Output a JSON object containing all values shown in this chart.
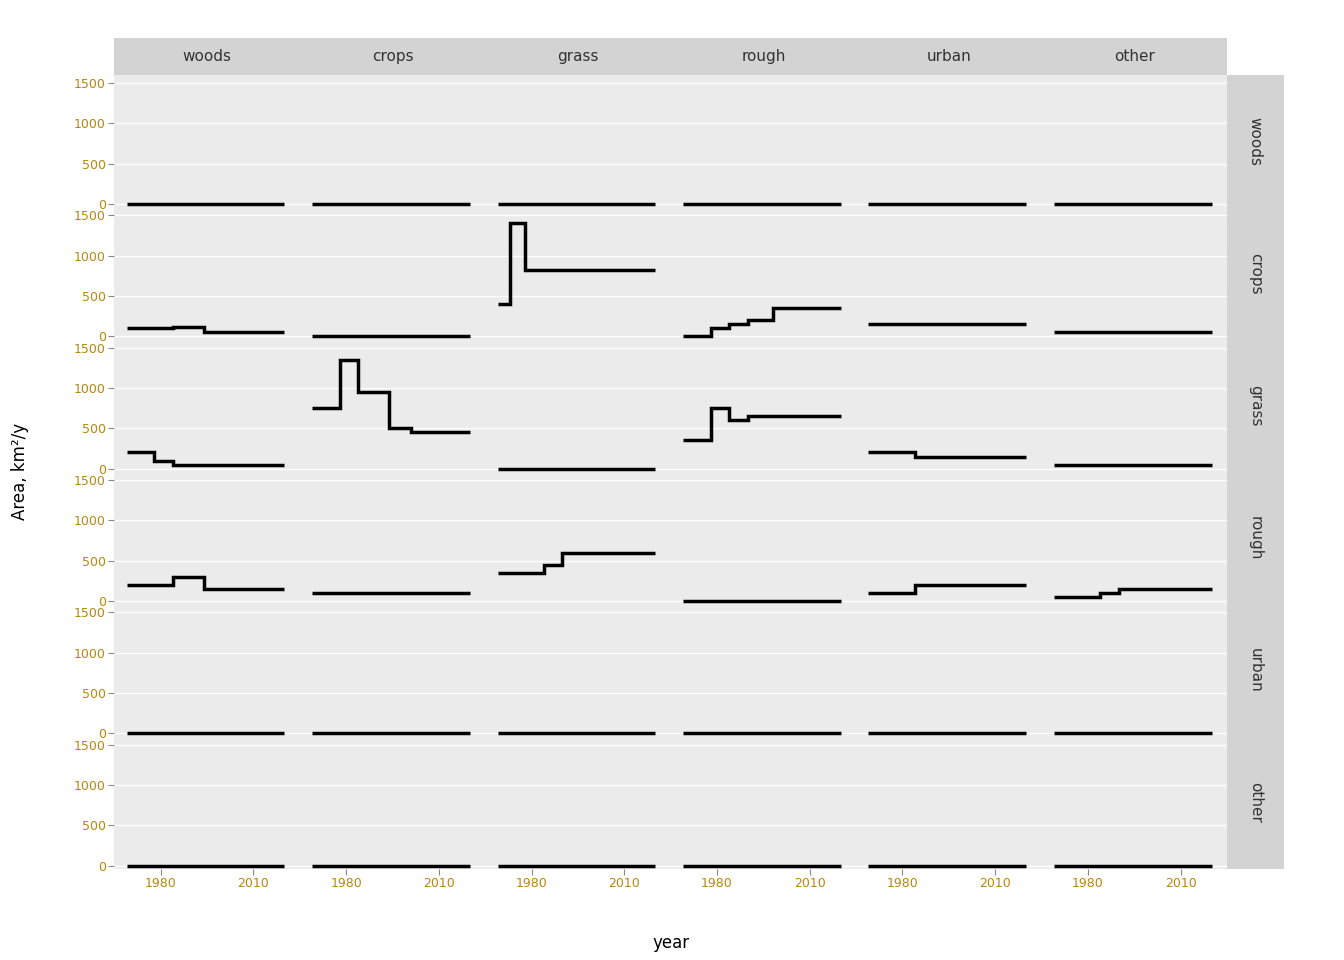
{
  "categories": [
    "woods",
    "crops",
    "grass",
    "rough",
    "urban",
    "other"
  ],
  "panel_bg": "#EBEBEB",
  "line_color": "black",
  "line_width": 2.5,
  "ylabel": "Area, km²/y",
  "xlabel": "year",
  "ylim": [
    -40,
    1600
  ],
  "yticks": [
    0,
    500,
    1000,
    1500
  ],
  "xlim": [
    1965,
    2025
  ],
  "xticks": [
    1980,
    2010
  ],
  "strip_bg": "#D3D3D3",
  "strip_text_color": "#333333",
  "tick_color": "#B8860B",
  "tick_fontsize": 9,
  "axis_label_fontsize": 12,
  "strip_fontsize": 11,
  "grid_color": "white",
  "grid_lw": 1.0,
  "series": {
    "woods_woods": {
      "years": [
        1969,
        2020
      ],
      "values": [
        0,
        0
      ]
    },
    "woods_crops": {
      "years": [
        1969,
        2020
      ],
      "values": [
        0,
        0
      ]
    },
    "woods_grass": {
      "years": [
        1969,
        2020
      ],
      "values": [
        0,
        0
      ]
    },
    "woods_rough": {
      "years": [
        1969,
        2020
      ],
      "values": [
        0,
        0
      ]
    },
    "woods_urban": {
      "years": [
        1969,
        2020
      ],
      "values": [
        0,
        0
      ]
    },
    "woods_other": {
      "years": [
        1969,
        2020
      ],
      "values": [
        0,
        0
      ]
    },
    "crops_woods": {
      "years": [
        1969,
        1984,
        1984,
        1994,
        1994,
        2020
      ],
      "values": [
        100,
        100,
        120,
        120,
        50,
        50
      ]
    },
    "crops_crops": {
      "years": [
        1969,
        2020
      ],
      "values": [
        0,
        0
      ]
    },
    "crops_grass": {
      "years": [
        1969,
        1973,
        1973,
        1978,
        1978,
        1993,
        1993,
        2020
      ],
      "values": [
        400,
        400,
        1400,
        1400,
        820,
        820,
        820,
        820
      ]
    },
    "crops_rough": {
      "years": [
        1969,
        1978,
        1978,
        1984,
        1984,
        1990,
        1990,
        1998,
        1998,
        2020
      ],
      "values": [
        0,
        0,
        100,
        100,
        150,
        150,
        200,
        200,
        350,
        350
      ]
    },
    "crops_urban": {
      "years": [
        1969,
        2020
      ],
      "values": [
        150,
        150
      ]
    },
    "crops_other": {
      "years": [
        1969,
        2020
      ],
      "values": [
        50,
        50
      ]
    },
    "grass_woods": {
      "years": [
        1969,
        1978,
        1978,
        1984,
        1984,
        1990,
        1990,
        2020
      ],
      "values": [
        200,
        200,
        100,
        100,
        50,
        50,
        50,
        50
      ]
    },
    "grass_crops": {
      "years": [
        1969,
        1978,
        1978,
        1984,
        1984,
        1994,
        1994,
        2001,
        2001,
        2020
      ],
      "values": [
        750,
        750,
        1350,
        1350,
        950,
        950,
        500,
        500,
        450,
        450
      ]
    },
    "grass_grass": {
      "years": [
        1969,
        2020
      ],
      "values": [
        0,
        0
      ]
    },
    "grass_rough": {
      "years": [
        1969,
        1978,
        1978,
        1984,
        1984,
        1990,
        1990,
        2020
      ],
      "values": [
        350,
        350,
        750,
        750,
        600,
        600,
        650,
        650
      ]
    },
    "grass_urban": {
      "years": [
        1969,
        1984,
        1984,
        2020
      ],
      "values": [
        200,
        200,
        150,
        150
      ]
    },
    "grass_other": {
      "years": [
        1969,
        2020
      ],
      "values": [
        50,
        50
      ]
    },
    "rough_woods": {
      "years": [
        1969,
        1984,
        1984,
        1994,
        1994,
        2020
      ],
      "values": [
        200,
        200,
        300,
        300,
        150,
        150
      ]
    },
    "rough_crops": {
      "years": [
        1969,
        2020
      ],
      "values": [
        100,
        100
      ]
    },
    "rough_grass": {
      "years": [
        1969,
        1984,
        1984,
        1990,
        1990,
        2020
      ],
      "values": [
        350,
        350,
        450,
        450,
        600,
        600
      ]
    },
    "rough_rough": {
      "years": [
        1969,
        2020
      ],
      "values": [
        0,
        0
      ]
    },
    "rough_urban": {
      "years": [
        1969,
        1984,
        1984,
        2020
      ],
      "values": [
        100,
        100,
        200,
        200
      ]
    },
    "rough_other": {
      "years": [
        1969,
        1984,
        1984,
        1990,
        1990,
        2020
      ],
      "values": [
        50,
        50,
        100,
        100,
        150,
        150
      ]
    },
    "urban_woods": {
      "years": [
        1969,
        2020
      ],
      "values": [
        0,
        0
      ]
    },
    "urban_crops": {
      "years": [
        1969,
        2020
      ],
      "values": [
        0,
        0
      ]
    },
    "urban_grass": {
      "years": [
        1969,
        2020
      ],
      "values": [
        0,
        0
      ]
    },
    "urban_rough": {
      "years": [
        1969,
        2020
      ],
      "values": [
        0,
        0
      ]
    },
    "urban_urban": {
      "years": [
        1969,
        2020
      ],
      "values": [
        0,
        0
      ]
    },
    "urban_other": {
      "years": [
        1969,
        2020
      ],
      "values": [
        0,
        0
      ]
    },
    "other_woods": {
      "years": [
        1969,
        2020
      ],
      "values": [
        0,
        0
      ]
    },
    "other_crops": {
      "years": [
        1969,
        2020
      ],
      "values": [
        0,
        0
      ]
    },
    "other_grass": {
      "years": [
        1969,
        2020
      ],
      "values": [
        0,
        0
      ]
    },
    "other_rough": {
      "years": [
        1969,
        2020
      ],
      "values": [
        0,
        0
      ]
    },
    "other_urban": {
      "years": [
        1969,
        2020
      ],
      "values": [
        0,
        0
      ]
    },
    "other_other": {
      "years": [
        1969,
        2020
      ],
      "values": [
        0,
        0
      ]
    }
  }
}
